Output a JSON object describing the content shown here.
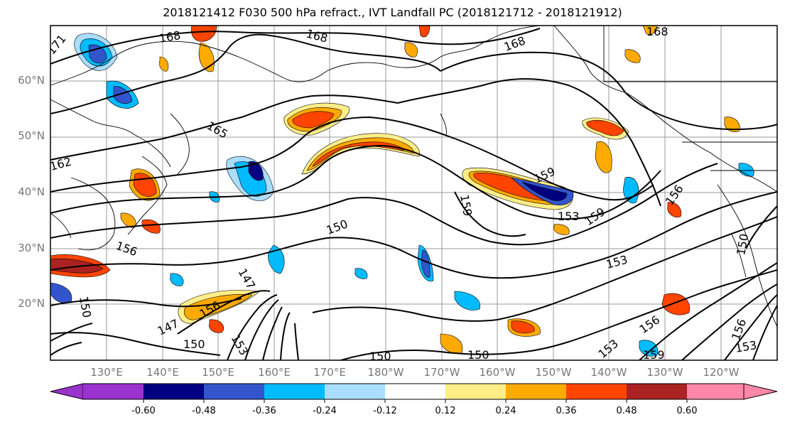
{
  "title": "2018121412 F030 500 hPa refract., IVT Landfall PC (2018121712 - 2018121912)",
  "lat_labels": [
    "60°N",
    "50°N",
    "40°N",
    "30°N",
    "20°N"
  ],
  "lon_labels": [
    "130°E",
    "140°E",
    "150°E",
    "160°E",
    "170°E",
    "180°W",
    "170°W",
    "160°W",
    "150°W",
    "140°W",
    "130°W",
    "120°W"
  ],
  "colorbar": {
    "labels": [
      "-0.60",
      "-0.48",
      "-0.36",
      "-0.24",
      "-0.12",
      "0.12",
      "0.24",
      "0.36",
      "0.48",
      "0.60"
    ],
    "colors": [
      "#9933cc",
      "#000080",
      "#3355cc",
      "#00bbff",
      "#aaddff",
      "#ffffff",
      "#ffee88",
      "#ffaa00",
      "#ff4400",
      "#aa2222",
      "#ff88aa"
    ]
  },
  "contour_labels": [
    "168",
    "168",
    "168",
    "168",
    "171",
    "165",
    "162",
    "159",
    "159",
    "156",
    "156",
    "153",
    "153",
    "150",
    "150",
    "150",
    "147",
    "147",
    "150",
    "153",
    "156",
    "159",
    "153",
    "156",
    "159",
    "156",
    "153",
    "150",
    "150"
  ]
}
